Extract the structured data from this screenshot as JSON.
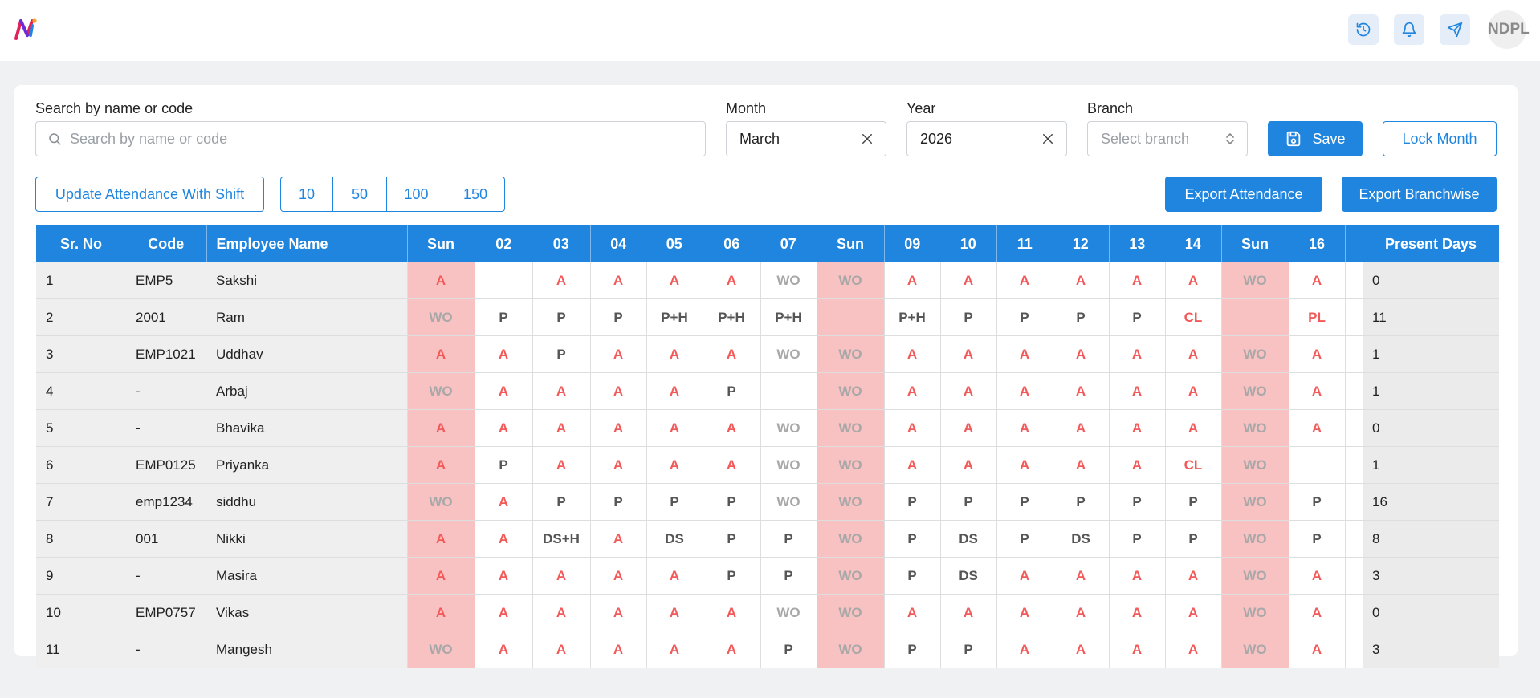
{
  "header": {
    "avatar_text": "NDPL",
    "icons": [
      "history-icon",
      "bell-icon",
      "send-icon"
    ]
  },
  "filters": {
    "search_label": "Search by name or code",
    "search_placeholder": "Search by name or code",
    "month_label": "Month",
    "month_value": "March",
    "year_label": "Year",
    "year_value": "2026",
    "branch_label": "Branch",
    "branch_placeholder": "Select branch"
  },
  "actions": {
    "save": "Save",
    "lock_month": "Lock Month",
    "update_shift": "Update Attendance With Shift",
    "page_sizes": [
      "10",
      "50",
      "100",
      "150"
    ],
    "export_attendance": "Export Attendance",
    "export_branchwise": "Export Branchwise"
  },
  "colors": {
    "primary": "#1f85de",
    "absent": "#f25a5a",
    "sunday_bg": "#f8c1c2",
    "weekoff": "#a8a8a8"
  },
  "table": {
    "headers": {
      "sr": "Sr. No",
      "code": "Code",
      "name": "Employee Name",
      "present": "Present Days"
    },
    "days": [
      "Sun",
      "02",
      "03",
      "04",
      "05",
      "06",
      "07",
      "Sun",
      "09",
      "10",
      "11",
      "12",
      "13",
      "14",
      "Sun",
      "16"
    ],
    "sunday_indexes": [
      0,
      7,
      14
    ],
    "rows": [
      {
        "sr": "1",
        "code": "EMP5",
        "name": "Sakshi",
        "cells": [
          "A",
          "",
          "A",
          "A",
          "A",
          "A",
          "WO",
          "WO",
          "A",
          "A",
          "A",
          "A",
          "A",
          "A",
          "WO",
          "A"
        ],
        "present": "0"
      },
      {
        "sr": "2",
        "code": "2001",
        "name": "Ram",
        "cells": [
          "WO",
          "P",
          "P",
          "P",
          "P+H",
          "P+H",
          "P+H",
          "",
          "P+H",
          "P",
          "P",
          "P",
          "P",
          "CL",
          "",
          "PL"
        ],
        "present": "11"
      },
      {
        "sr": "3",
        "code": "EMP1021",
        "name": "Uddhav",
        "cells": [
          "A",
          "A",
          "P",
          "A",
          "A",
          "A",
          "WO",
          "WO",
          "A",
          "A",
          "A",
          "A",
          "A",
          "A",
          "WO",
          "A"
        ],
        "present": "1"
      },
      {
        "sr": "4",
        "code": "-",
        "name": "Arbaj",
        "cells": [
          "WO",
          "A",
          "A",
          "A",
          "A",
          "P",
          "",
          "WO",
          "A",
          "A",
          "A",
          "A",
          "A",
          "A",
          "WO",
          "A"
        ],
        "present": "1"
      },
      {
        "sr": "5",
        "code": "-",
        "name": "Bhavika",
        "cells": [
          "A",
          "A",
          "A",
          "A",
          "A",
          "A",
          "WO",
          "WO",
          "A",
          "A",
          "A",
          "A",
          "A",
          "A",
          "WO",
          "A"
        ],
        "present": "0"
      },
      {
        "sr": "6",
        "code": "EMP0125",
        "name": "Priyanka",
        "cells": [
          "A",
          "P",
          "A",
          "A",
          "A",
          "A",
          "WO",
          "WO",
          "A",
          "A",
          "A",
          "A",
          "A",
          "CL",
          "WO",
          ""
        ],
        "present": "1"
      },
      {
        "sr": "7",
        "code": "emp1234",
        "name": "siddhu",
        "cells": [
          "WO",
          "A",
          "P",
          "P",
          "P",
          "P",
          "WO",
          "WO",
          "P",
          "P",
          "P",
          "P",
          "P",
          "P",
          "WO",
          "P"
        ],
        "present": "16"
      },
      {
        "sr": "8",
        "code": "001",
        "name": "Nikki",
        "cells": [
          "A",
          "A",
          "DS+H",
          "A",
          "DS",
          "P",
          "P",
          "WO",
          "P",
          "DS",
          "P",
          "DS",
          "P",
          "P",
          "WO",
          "P"
        ],
        "present": "8"
      },
      {
        "sr": "9",
        "code": "-",
        "name": "Masira",
        "cells": [
          "A",
          "A",
          "A",
          "A",
          "A",
          "P",
          "P",
          "WO",
          "P",
          "DS",
          "A",
          "A",
          "A",
          "A",
          "WO",
          "A"
        ],
        "present": "3"
      },
      {
        "sr": "10",
        "code": "EMP0757",
        "name": "Vikas",
        "cells": [
          "A",
          "A",
          "A",
          "A",
          "A",
          "A",
          "WO",
          "WO",
          "A",
          "A",
          "A",
          "A",
          "A",
          "A",
          "WO",
          "A"
        ],
        "present": "0"
      },
      {
        "sr": "11",
        "code": "-",
        "name": "Mangesh",
        "cells": [
          "WO",
          "A",
          "A",
          "A",
          "A",
          "A",
          "P",
          "WO",
          "P",
          "P",
          "A",
          "A",
          "A",
          "A",
          "WO",
          "A"
        ],
        "present": "3"
      }
    ]
  }
}
